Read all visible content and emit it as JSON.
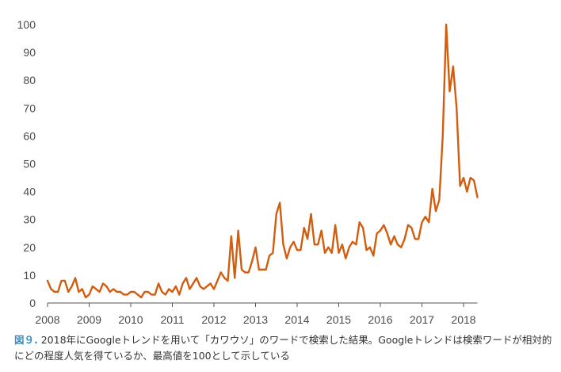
{
  "chart_data": {
    "type": "line",
    "title": "",
    "xlabel": "",
    "ylabel": "",
    "ylim": [
      0,
      100
    ],
    "xlim": [
      "2008-01",
      "2018-05"
    ],
    "yticks": [
      "0",
      "10",
      "20",
      "30",
      "40",
      "50",
      "60",
      "70",
      "80",
      "90",
      "100"
    ],
    "xticks": [
      "2008",
      "2009",
      "2010",
      "2011",
      "2012",
      "2013",
      "2014",
      "2015",
      "2016",
      "2017",
      "2018"
    ],
    "grid": false,
    "legend": "none",
    "line_color": "#d35d0e",
    "series": [
      {
        "values": [
          8,
          5,
          4,
          4,
          8,
          8,
          4,
          6,
          9,
          4,
          5,
          2,
          3,
          6,
          5,
          4,
          7,
          6,
          4,
          5,
          4,
          4,
          3,
          3,
          4,
          4,
          3,
          2,
          4,
          4,
          3,
          3,
          7,
          4,
          3,
          5,
          4,
          6,
          3,
          7,
          9,
          5,
          7,
          9,
          6,
          5,
          6,
          7,
          5,
          8,
          11,
          9,
          8,
          24,
          9,
          26,
          12,
          11,
          11,
          15,
          20,
          12,
          12,
          12,
          17,
          18,
          32,
          36,
          21,
          16,
          20,
          22,
          19,
          19,
          27,
          23,
          32,
          21,
          21,
          26,
          18,
          20,
          18,
          28,
          18,
          21,
          16,
          20,
          22,
          21,
          29,
          27,
          19,
          20,
          17,
          25,
          26,
          28,
          25,
          21,
          24,
          21,
          20,
          23,
          28,
          27,
          23,
          23,
          29,
          31,
          29,
          41,
          33,
          37,
          60,
          100,
          76,
          85,
          70,
          42,
          45,
          40,
          45,
          44,
          38
        ],
        "start": "2008-01",
        "step": "month"
      }
    ]
  },
  "caption": {
    "fig_label": "図９.",
    "text": " 2018年にGoogleトレンドを用いて「カワウソ」のワードで検索した結果。Googleトレンドは検索ワードが相対的にどの程度人気を得ているか、最高値を100として示している"
  }
}
